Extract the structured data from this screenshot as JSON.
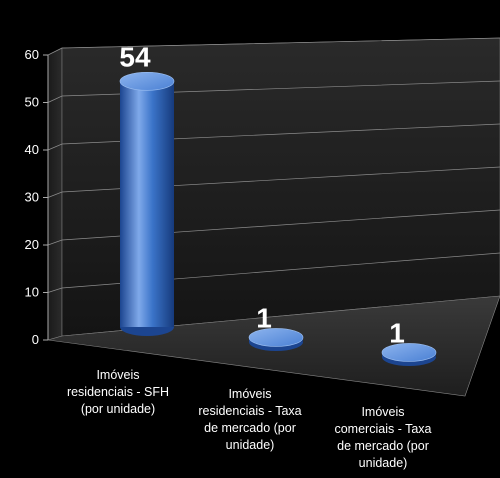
{
  "chart_data": {
    "type": "bar",
    "style": "3d-cylinder",
    "categories": [
      "Imóveis residenciais - SFH (por unidade)",
      "Imóveis residenciais - Taxa de mercado (por unidade)",
      "Imóveis comerciais - Taxa de mercado (por unidade)"
    ],
    "values": [
      54,
      1,
      1
    ],
    "data_labels": [
      "54",
      "1",
      "1"
    ],
    "ylim": [
      0,
      60
    ],
    "yticks": [
      0,
      10,
      20,
      30,
      40,
      50,
      60
    ],
    "grid": true,
    "legend": "none",
    "colors": {
      "bar": "#3b74c9",
      "bar_light": "#7fa9ea",
      "bar_dark": "#1c4590",
      "background": "#000000",
      "text": "#ffffff",
      "grid": "#8c8c8c"
    }
  },
  "category_lines": [
    [
      "Imóveis",
      "residenciais - SFH",
      "(por unidade)"
    ],
    [
      "Imóveis",
      "residenciais - Taxa",
      "de mercado (por",
      "unidade)"
    ],
    [
      "Imóveis",
      "comerciais - Taxa",
      "de mercado (por",
      "unidade)"
    ]
  ]
}
